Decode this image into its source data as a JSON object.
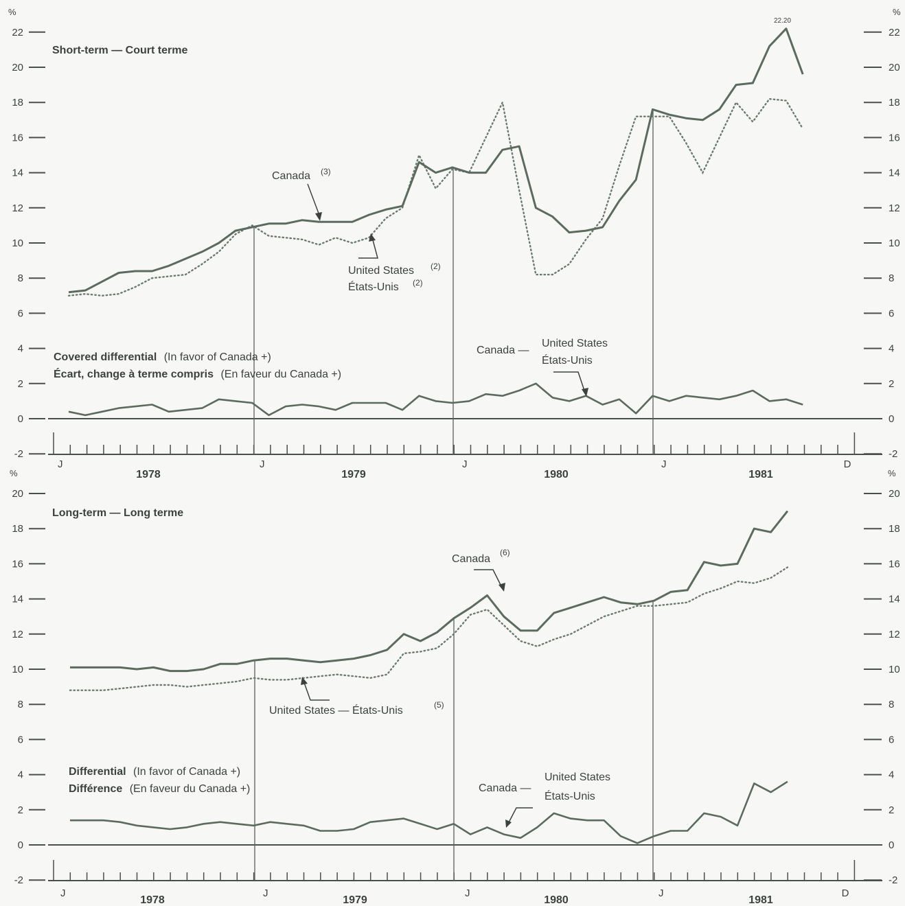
{
  "chart_data": [
    {
      "type": "line",
      "title": "Short-term — Court terme",
      "unit": "%",
      "ylim": [
        -2,
        22
      ],
      "yticks": [
        -2,
        0,
        2,
        4,
        6,
        8,
        10,
        12,
        14,
        16,
        18,
        20,
        22
      ],
      "x_start_label": "J",
      "x_end_label": "D",
      "year_labels": [
        "1978",
        "1979",
        "1980",
        "1981"
      ],
      "month_labels": [
        "J",
        "J",
        "J",
        "J"
      ],
      "peak_label": "22.20",
      "series": [
        {
          "name": "Canada",
          "name_sup": "(3)",
          "values": [
            7.2,
            7.3,
            7.8,
            8.3,
            8.4,
            8.4,
            8.7,
            9.1,
            9.5,
            10.0,
            10.7,
            10.9,
            11.1,
            11.1,
            11.3,
            11.2,
            11.2,
            11.2,
            11.6,
            11.9,
            12.1,
            14.6,
            14.0,
            14.3,
            14.0,
            14.0,
            15.3,
            15.5,
            12.0,
            11.5,
            10.6,
            10.7,
            10.9,
            12.4,
            13.6,
            17.6,
            17.3,
            17.1,
            17.0,
            17.6,
            19.0,
            19.1,
            21.2,
            22.2,
            19.6
          ]
        },
        {
          "name": "United States",
          "name_alt": "États-Unis",
          "name_sup": "(2)",
          "values": [
            7.0,
            7.1,
            7.0,
            7.1,
            7.5,
            8.0,
            8.1,
            8.2,
            8.8,
            9.5,
            10.5,
            11.0,
            10.4,
            10.3,
            10.2,
            9.9,
            10.3,
            10.0,
            10.3,
            11.4,
            12.0,
            15.0,
            13.1,
            14.2,
            14.0,
            16.0,
            18.0,
            13.0,
            8.2,
            8.2,
            8.8,
            10.2,
            11.4,
            14.4,
            17.2,
            17.2,
            17.2,
            15.7,
            14.0,
            16.0,
            18.0,
            16.9,
            18.2,
            18.1,
            16.5
          ]
        }
      ],
      "differential": {
        "title": "Covered differential",
        "title_suffix": "(In favor of Canada +)",
        "title_fr": "Écart, change à terme compris",
        "title_fr_suffix": "(En faveur du Canada +)",
        "label_left": "Canada —",
        "label_right": "United States",
        "label_right_alt": "États-Unis",
        "values": [
          0.4,
          0.2,
          0.4,
          0.6,
          0.7,
          0.8,
          0.4,
          0.5,
          0.6,
          1.1,
          1.0,
          0.9,
          0.2,
          0.7,
          0.8,
          0.7,
          0.5,
          0.9,
          0.9,
          0.9,
          0.5,
          1.3,
          1.0,
          0.9,
          1.0,
          1.4,
          1.3,
          1.6,
          2.0,
          1.2,
          1.0,
          1.3,
          0.8,
          1.1,
          0.3,
          1.3,
          1.0,
          1.3,
          1.2,
          1.1,
          1.3,
          1.6,
          1.0,
          1.1,
          0.8
        ]
      }
    },
    {
      "type": "line",
      "title": "Long-term — Long terme",
      "unit": "%",
      "ylim": [
        -2,
        20
      ],
      "yticks": [
        -2,
        0,
        2,
        4,
        6,
        8,
        10,
        12,
        14,
        16,
        18,
        20
      ],
      "x_start_label": "J",
      "x_end_label": "D",
      "year_labels": [
        "1978",
        "1979",
        "1980",
        "1981"
      ],
      "month_labels": [
        "J",
        "J",
        "J",
        "J"
      ],
      "series": [
        {
          "name": "Canada",
          "name_sup": "(6)",
          "values": [
            10.1,
            10.1,
            10.1,
            10.1,
            10.0,
            10.1,
            9.9,
            9.9,
            10.0,
            10.3,
            10.3,
            10.5,
            10.6,
            10.6,
            10.5,
            10.4,
            10.5,
            10.6,
            10.8,
            11.1,
            12.0,
            11.6,
            12.1,
            12.9,
            13.5,
            14.2,
            13.0,
            12.2,
            12.2,
            13.2,
            13.5,
            13.8,
            14.1,
            13.8,
            13.7,
            13.9,
            14.4,
            14.5,
            16.1,
            15.9,
            16.0,
            18.0,
            17.8,
            19.0
          ]
        },
        {
          "name": "United States — États-Unis",
          "name_sup": "(5)",
          "values": [
            8.8,
            8.8,
            8.8,
            8.9,
            9.0,
            9.1,
            9.1,
            9.0,
            9.1,
            9.2,
            9.3,
            9.5,
            9.4,
            9.4,
            9.5,
            9.6,
            9.7,
            9.6,
            9.5,
            9.7,
            10.9,
            11.0,
            11.2,
            12.0,
            13.1,
            13.4,
            12.5,
            11.6,
            11.3,
            11.7,
            12.0,
            12.5,
            13.0,
            13.3,
            13.6,
            13.6,
            13.7,
            13.8,
            14.3,
            14.6,
            15.0,
            14.9,
            15.2,
            15.8
          ]
        }
      ],
      "differential": {
        "title": "Differential",
        "title_suffix": "(In favor of Canada +)",
        "title_fr": "Différence",
        "title_fr_suffix": "(En faveur du Canada +)",
        "label_left": "Canada —",
        "label_right": "United States",
        "label_right_alt": "États-Unis",
        "values": [
          1.4,
          1.4,
          1.4,
          1.3,
          1.1,
          1.0,
          0.9,
          1.0,
          1.2,
          1.3,
          1.2,
          1.1,
          1.3,
          1.2,
          1.1,
          0.8,
          0.8,
          0.9,
          1.3,
          1.4,
          1.5,
          1.2,
          0.9,
          1.2,
          0.6,
          1.0,
          0.6,
          0.4,
          1.0,
          1.8,
          1.5,
          1.4,
          1.4,
          0.5,
          0.1,
          0.5,
          0.8,
          0.8,
          1.8,
          1.6,
          1.1,
          3.5,
          3.0,
          3.6
        ]
      }
    }
  ]
}
